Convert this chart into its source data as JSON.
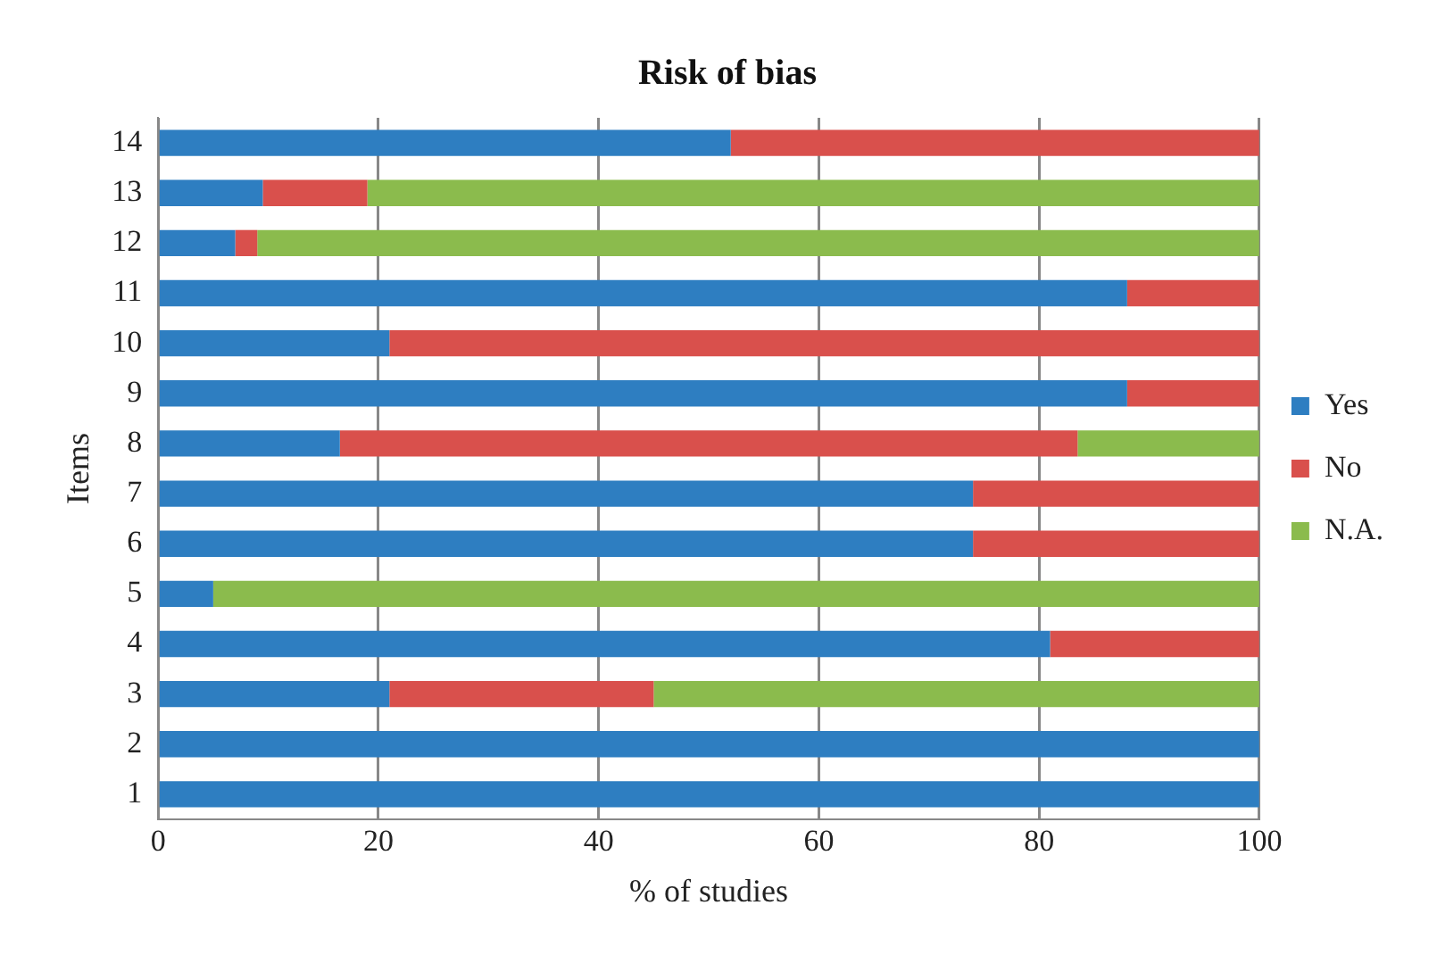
{
  "chart_data": {
    "type": "bar",
    "orientation": "horizontal",
    "stacked": true,
    "title": "Risk of bias",
    "xlabel": "% of studies",
    "ylabel": "Items",
    "categories": [
      "14",
      "13",
      "12",
      "11",
      "10",
      "9",
      "8",
      "7",
      "6",
      "5",
      "4",
      "3",
      "2",
      "1"
    ],
    "series": [
      {
        "name": "Yes",
        "color": "#2e7ec1",
        "values": [
          52,
          9.5,
          7,
          88,
          21,
          88,
          16.5,
          74,
          74,
          5,
          81,
          21,
          100,
          100
        ]
      },
      {
        "name": "No",
        "color": "#d9504c",
        "values": [
          48,
          9.5,
          2,
          12,
          79,
          12,
          67,
          26,
          26,
          0,
          19,
          24,
          0,
          0
        ]
      },
      {
        "name": "N.A.",
        "color": "#8bbb4d",
        "values": [
          0,
          81,
          91,
          0,
          0,
          0,
          16.5,
          0,
          0,
          95,
          0,
          55,
          0,
          0
        ]
      }
    ],
    "xlim": [
      0,
      100
    ],
    "xticks": [
      0,
      20,
      40,
      60,
      80,
      100
    ],
    "grid": "x",
    "legend": "right"
  }
}
